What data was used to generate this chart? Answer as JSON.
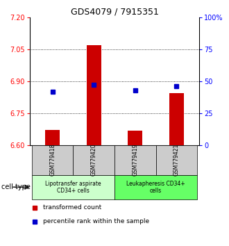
{
  "title": "GDS4079 / 7915351",
  "samples": [
    "GSM779418",
    "GSM779420",
    "GSM779419",
    "GSM779421"
  ],
  "bar_values": [
    6.672,
    7.068,
    6.668,
    6.845
  ],
  "bar_base": 6.6,
  "percentile_values": [
    42.0,
    47.0,
    43.0,
    46.0
  ],
  "ylim_left": [
    6.6,
    7.2
  ],
  "ylim_right": [
    0,
    100
  ],
  "yticks_left": [
    6.6,
    6.75,
    6.9,
    7.05,
    7.2
  ],
  "yticks_right": [
    0,
    25,
    50,
    75,
    100
  ],
  "ytick_labels_right": [
    "0",
    "25",
    "50",
    "75",
    "100%"
  ],
  "bar_color": "#cc0000",
  "point_color": "#0000cc",
  "cell_types": [
    {
      "label": "Lipotransfer aspirate\nCD34+ cells",
      "color": "#ccffcc",
      "indices": [
        0,
        1
      ]
    },
    {
      "label": "Leukapheresis CD34+\ncells",
      "color": "#66ff66",
      "indices": [
        2,
        3
      ]
    }
  ],
  "legend_items": [
    {
      "label": "transformed count",
      "color": "#cc0000"
    },
    {
      "label": "percentile rank within the sample",
      "color": "#0000cc"
    }
  ],
  "cell_type_label": "cell type",
  "bar_width": 0.35,
  "sample_box_bg": "#cccccc",
  "figsize": [
    3.3,
    3.54
  ],
  "dpi": 100
}
